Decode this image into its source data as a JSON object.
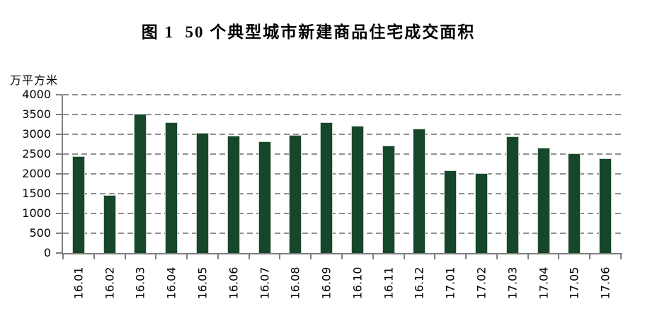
{
  "chart_data": {
    "type": "bar",
    "title": "图 1  50 个典型城市新建商品住宅成交面积",
    "unit_label": "万平方米",
    "categories": [
      "16.01",
      "16.02",
      "16.03",
      "16.04",
      "16.05",
      "16.06",
      "16.07",
      "16.08",
      "16.09",
      "16.10",
      "16.11",
      "16.12",
      "17.01",
      "17.02",
      "17.03",
      "17.04",
      "17.05",
      "17.06"
    ],
    "values": [
      2430,
      1450,
      3500,
      3280,
      3010,
      2950,
      2800,
      2960,
      3280,
      3200,
      2690,
      3120,
      2080,
      2000,
      2920,
      2640,
      2500,
      2380
    ],
    "xlabel": "",
    "ylabel": "万平方米",
    "ylim": [
      0,
      4000
    ],
    "ytick_step": 500,
    "grid": "dashed-horizontal",
    "legend": "none",
    "colors": {
      "bar_fill": "#17472a",
      "bar_edge": "#c9d3c9",
      "gridline": "#909090",
      "axis": "#7f7f7f",
      "text": "#000000",
      "background": "#ffffff"
    }
  }
}
